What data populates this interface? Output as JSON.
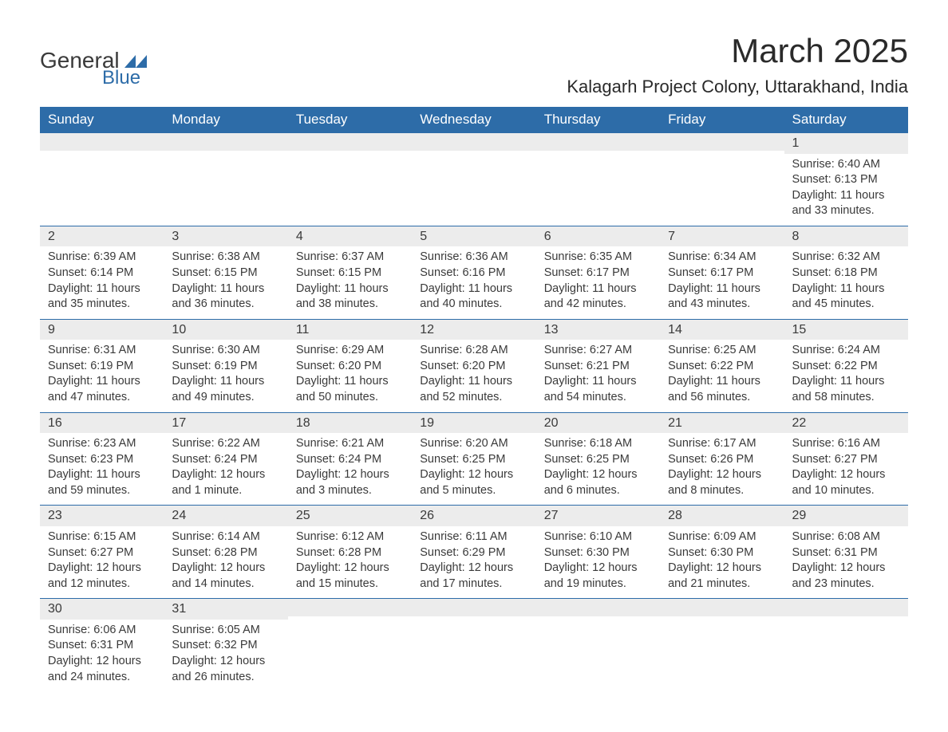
{
  "brand": {
    "text1": "General",
    "text2": "Blue",
    "logo_color": "#2d6ca8"
  },
  "title": "March 2025",
  "location": "Kalagarh Project Colony, Uttarakhand, India",
  "colors": {
    "header_bg": "#2d6ca8",
    "header_text": "#ffffff",
    "daynum_bg": "#ececec",
    "text": "#3a3a3a",
    "border": "#2d6ca8",
    "background": "#ffffff"
  },
  "daysOfWeek": [
    "Sunday",
    "Monday",
    "Tuesday",
    "Wednesday",
    "Thursday",
    "Friday",
    "Saturday"
  ],
  "weeks": [
    [
      {
        "n": "",
        "sunrise": "",
        "sunset": "",
        "daylight": ""
      },
      {
        "n": "",
        "sunrise": "",
        "sunset": "",
        "daylight": ""
      },
      {
        "n": "",
        "sunrise": "",
        "sunset": "",
        "daylight": ""
      },
      {
        "n": "",
        "sunrise": "",
        "sunset": "",
        "daylight": ""
      },
      {
        "n": "",
        "sunrise": "",
        "sunset": "",
        "daylight": ""
      },
      {
        "n": "",
        "sunrise": "",
        "sunset": "",
        "daylight": ""
      },
      {
        "n": "1",
        "sunrise": "Sunrise: 6:40 AM",
        "sunset": "Sunset: 6:13 PM",
        "daylight": "Daylight: 11 hours and 33 minutes."
      }
    ],
    [
      {
        "n": "2",
        "sunrise": "Sunrise: 6:39 AM",
        "sunset": "Sunset: 6:14 PM",
        "daylight": "Daylight: 11 hours and 35 minutes."
      },
      {
        "n": "3",
        "sunrise": "Sunrise: 6:38 AM",
        "sunset": "Sunset: 6:15 PM",
        "daylight": "Daylight: 11 hours and 36 minutes."
      },
      {
        "n": "4",
        "sunrise": "Sunrise: 6:37 AM",
        "sunset": "Sunset: 6:15 PM",
        "daylight": "Daylight: 11 hours and 38 minutes."
      },
      {
        "n": "5",
        "sunrise": "Sunrise: 6:36 AM",
        "sunset": "Sunset: 6:16 PM",
        "daylight": "Daylight: 11 hours and 40 minutes."
      },
      {
        "n": "6",
        "sunrise": "Sunrise: 6:35 AM",
        "sunset": "Sunset: 6:17 PM",
        "daylight": "Daylight: 11 hours and 42 minutes."
      },
      {
        "n": "7",
        "sunrise": "Sunrise: 6:34 AM",
        "sunset": "Sunset: 6:17 PM",
        "daylight": "Daylight: 11 hours and 43 minutes."
      },
      {
        "n": "8",
        "sunrise": "Sunrise: 6:32 AM",
        "sunset": "Sunset: 6:18 PM",
        "daylight": "Daylight: 11 hours and 45 minutes."
      }
    ],
    [
      {
        "n": "9",
        "sunrise": "Sunrise: 6:31 AM",
        "sunset": "Sunset: 6:19 PM",
        "daylight": "Daylight: 11 hours and 47 minutes."
      },
      {
        "n": "10",
        "sunrise": "Sunrise: 6:30 AM",
        "sunset": "Sunset: 6:19 PM",
        "daylight": "Daylight: 11 hours and 49 minutes."
      },
      {
        "n": "11",
        "sunrise": "Sunrise: 6:29 AM",
        "sunset": "Sunset: 6:20 PM",
        "daylight": "Daylight: 11 hours and 50 minutes."
      },
      {
        "n": "12",
        "sunrise": "Sunrise: 6:28 AM",
        "sunset": "Sunset: 6:20 PM",
        "daylight": "Daylight: 11 hours and 52 minutes."
      },
      {
        "n": "13",
        "sunrise": "Sunrise: 6:27 AM",
        "sunset": "Sunset: 6:21 PM",
        "daylight": "Daylight: 11 hours and 54 minutes."
      },
      {
        "n": "14",
        "sunrise": "Sunrise: 6:25 AM",
        "sunset": "Sunset: 6:22 PM",
        "daylight": "Daylight: 11 hours and 56 minutes."
      },
      {
        "n": "15",
        "sunrise": "Sunrise: 6:24 AM",
        "sunset": "Sunset: 6:22 PM",
        "daylight": "Daylight: 11 hours and 58 minutes."
      }
    ],
    [
      {
        "n": "16",
        "sunrise": "Sunrise: 6:23 AM",
        "sunset": "Sunset: 6:23 PM",
        "daylight": "Daylight: 11 hours and 59 minutes."
      },
      {
        "n": "17",
        "sunrise": "Sunrise: 6:22 AM",
        "sunset": "Sunset: 6:24 PM",
        "daylight": "Daylight: 12 hours and 1 minute."
      },
      {
        "n": "18",
        "sunrise": "Sunrise: 6:21 AM",
        "sunset": "Sunset: 6:24 PM",
        "daylight": "Daylight: 12 hours and 3 minutes."
      },
      {
        "n": "19",
        "sunrise": "Sunrise: 6:20 AM",
        "sunset": "Sunset: 6:25 PM",
        "daylight": "Daylight: 12 hours and 5 minutes."
      },
      {
        "n": "20",
        "sunrise": "Sunrise: 6:18 AM",
        "sunset": "Sunset: 6:25 PM",
        "daylight": "Daylight: 12 hours and 6 minutes."
      },
      {
        "n": "21",
        "sunrise": "Sunrise: 6:17 AM",
        "sunset": "Sunset: 6:26 PM",
        "daylight": "Daylight: 12 hours and 8 minutes."
      },
      {
        "n": "22",
        "sunrise": "Sunrise: 6:16 AM",
        "sunset": "Sunset: 6:27 PM",
        "daylight": "Daylight: 12 hours and 10 minutes."
      }
    ],
    [
      {
        "n": "23",
        "sunrise": "Sunrise: 6:15 AM",
        "sunset": "Sunset: 6:27 PM",
        "daylight": "Daylight: 12 hours and 12 minutes."
      },
      {
        "n": "24",
        "sunrise": "Sunrise: 6:14 AM",
        "sunset": "Sunset: 6:28 PM",
        "daylight": "Daylight: 12 hours and 14 minutes."
      },
      {
        "n": "25",
        "sunrise": "Sunrise: 6:12 AM",
        "sunset": "Sunset: 6:28 PM",
        "daylight": "Daylight: 12 hours and 15 minutes."
      },
      {
        "n": "26",
        "sunrise": "Sunrise: 6:11 AM",
        "sunset": "Sunset: 6:29 PM",
        "daylight": "Daylight: 12 hours and 17 minutes."
      },
      {
        "n": "27",
        "sunrise": "Sunrise: 6:10 AM",
        "sunset": "Sunset: 6:30 PM",
        "daylight": "Daylight: 12 hours and 19 minutes."
      },
      {
        "n": "28",
        "sunrise": "Sunrise: 6:09 AM",
        "sunset": "Sunset: 6:30 PM",
        "daylight": "Daylight: 12 hours and 21 minutes."
      },
      {
        "n": "29",
        "sunrise": "Sunrise: 6:08 AM",
        "sunset": "Sunset: 6:31 PM",
        "daylight": "Daylight: 12 hours and 23 minutes."
      }
    ],
    [
      {
        "n": "30",
        "sunrise": "Sunrise: 6:06 AM",
        "sunset": "Sunset: 6:31 PM",
        "daylight": "Daylight: 12 hours and 24 minutes."
      },
      {
        "n": "31",
        "sunrise": "Sunrise: 6:05 AM",
        "sunset": "Sunset: 6:32 PM",
        "daylight": "Daylight: 12 hours and 26 minutes."
      },
      {
        "n": "",
        "sunrise": "",
        "sunset": "",
        "daylight": ""
      },
      {
        "n": "",
        "sunrise": "",
        "sunset": "",
        "daylight": ""
      },
      {
        "n": "",
        "sunrise": "",
        "sunset": "",
        "daylight": ""
      },
      {
        "n": "",
        "sunrise": "",
        "sunset": "",
        "daylight": ""
      },
      {
        "n": "",
        "sunrise": "",
        "sunset": "",
        "daylight": ""
      }
    ]
  ]
}
